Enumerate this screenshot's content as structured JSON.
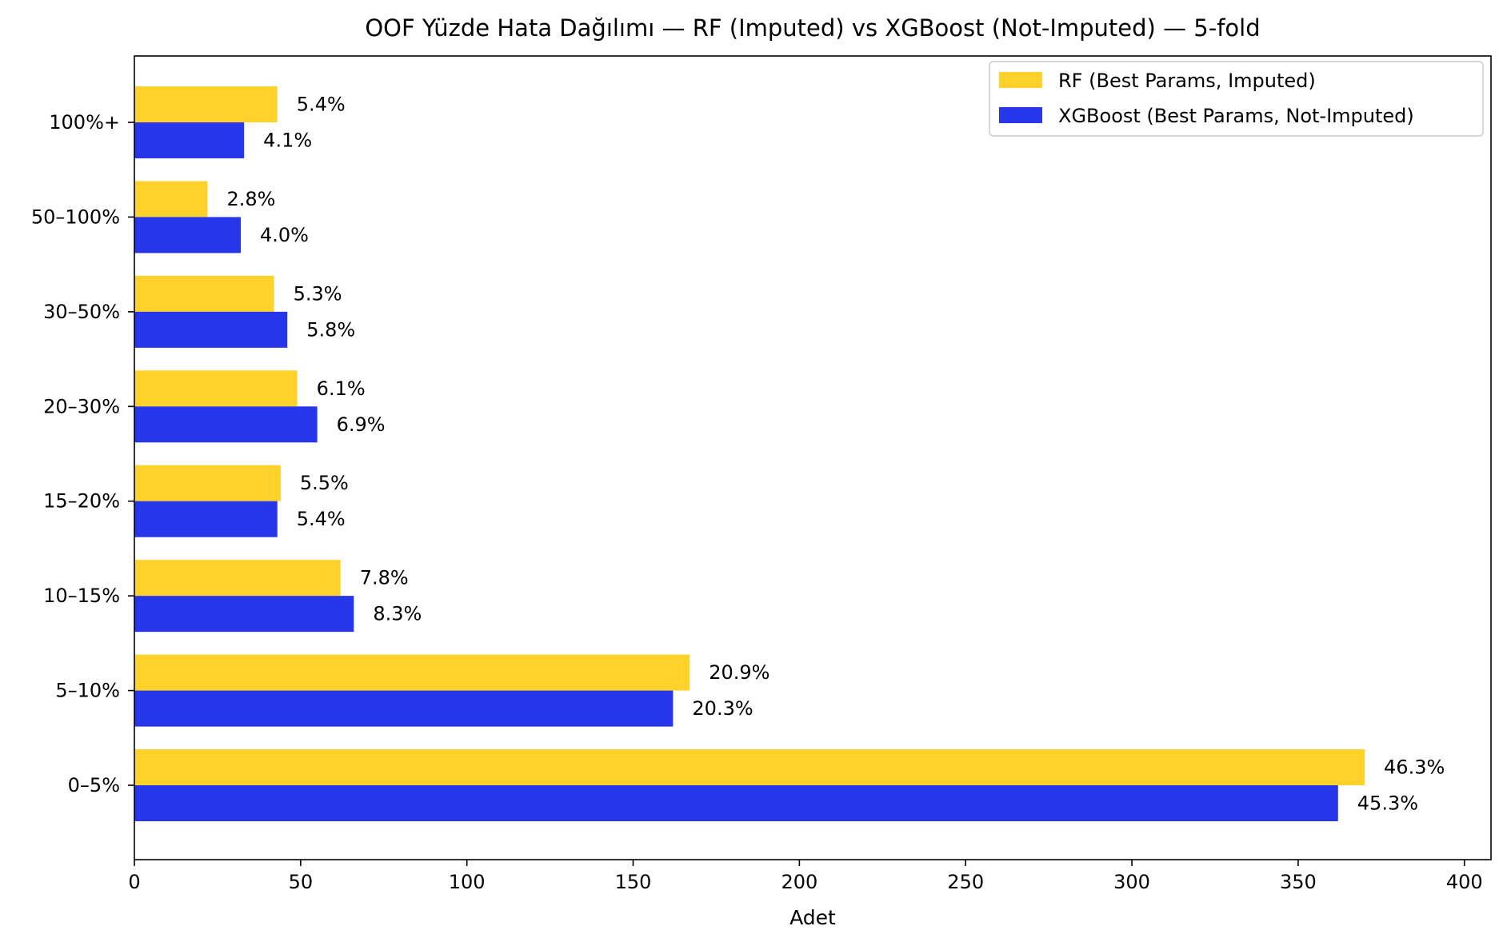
{
  "chart_data": {
    "type": "bar",
    "orientation": "horizontal",
    "title": "OOF Yüzde Hata Dağılımı — RF (Imputed) vs XGBoost (Not-Imputed) — 5-fold",
    "xlabel": "Adet",
    "ylabel": "",
    "xlim": [
      0,
      408
    ],
    "xticks": [
      0,
      50,
      100,
      150,
      200,
      250,
      300,
      350,
      400
    ],
    "categories": [
      "0–5%",
      "5–10%",
      "10–15%",
      "15–20%",
      "20–30%",
      "30–50%",
      "50–100%",
      "100%+"
    ],
    "series": [
      {
        "name": "RF (Best Params, Imputed)",
        "color": "#FFD22B",
        "values": [
          370,
          167,
          62,
          44,
          49,
          42,
          22,
          43
        ],
        "labels": [
          "46.3%",
          "20.9%",
          "7.8%",
          "5.5%",
          "6.1%",
          "5.3%",
          "2.8%",
          "5.4%"
        ]
      },
      {
        "name": "XGBoost (Best Params, Not-Imputed)",
        "color": "#2636E8",
        "values": [
          362,
          162,
          66,
          43,
          55,
          46,
          32,
          33
        ],
        "labels": [
          "45.3%",
          "20.3%",
          "8.3%",
          "5.4%",
          "6.9%",
          "5.8%",
          "4.0%",
          "4.1%"
        ]
      }
    ],
    "legend_position": "top-right",
    "grid": false
  }
}
